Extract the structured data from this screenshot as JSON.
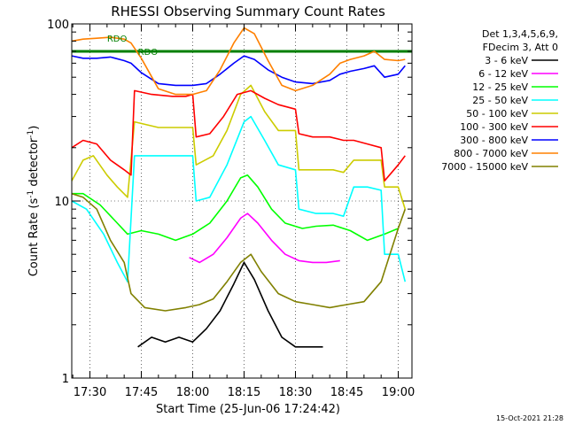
{
  "chart_data": {
    "type": "line",
    "title": "RHESSI Observing Summary Count Rates",
    "xlabel": "Start Time (25-Jun-06 17:24:42)",
    "ylabel": "Count Rate (s⁻¹ detector⁻¹)",
    "ylabel_base": "Count Rate (s",
    "ylabel_sup": "-1",
    "ylabel_rest": " detector",
    "ylabel_sup2": "-1",
    "ylabel_end": ")",
    "y_scale": "log",
    "ylim": [
      1,
      100
    ],
    "xlim": [
      "17:24:42",
      "19:04:00"
    ],
    "x_ticks": [
      "17:30",
      "17:45",
      "18:00",
      "18:15",
      "18:30",
      "18:45",
      "19:00"
    ],
    "y_ticks": [
      "1",
      "10",
      "100"
    ],
    "grid": "dotted",
    "legend_position": "right",
    "legend_header": [
      "Det 1,3,4,5,6,9,",
      "FDecim 3, Att 0"
    ],
    "footer_timestamp": "15-Oct-2021 21:28",
    "annotations": [
      {
        "text": "RDO",
        "at": "17:35",
        "value": 83
      },
      {
        "text": "RDO",
        "at": "17:44",
        "value": 70
      }
    ],
    "attenuator_level": {
      "value": 70,
      "from": "17:24:42",
      "to": "19:04:00",
      "color": "#007f00"
    },
    "series": [
      {
        "name": "3 - 6 keV",
        "color": "#000000",
        "points": [
          [
            "17:44",
            1.5
          ],
          [
            "17:48",
            1.7
          ],
          [
            "17:52",
            1.6
          ],
          [
            "17:56",
            1.7
          ],
          [
            "18:00",
            1.6
          ],
          [
            "18:04",
            1.9
          ],
          [
            "18:08",
            2.4
          ],
          [
            "18:12",
            3.4
          ],
          [
            "18:15",
            4.5
          ],
          [
            "18:18",
            3.6
          ],
          [
            "18:22",
            2.4
          ],
          [
            "18:26",
            1.7
          ],
          [
            "18:30",
            1.5
          ],
          [
            "18:34",
            1.5
          ],
          [
            "18:38",
            1.5
          ]
        ]
      },
      {
        "name": "6 - 12 keV",
        "color": "#ff00ff",
        "points": [
          [
            "17:59",
            4.8
          ],
          [
            "18:02",
            4.5
          ],
          [
            "18:06",
            5.0
          ],
          [
            "18:10",
            6.2
          ],
          [
            "18:14",
            8.0
          ],
          [
            "18:16",
            8.5
          ],
          [
            "18:19",
            7.5
          ],
          [
            "18:23",
            6.0
          ],
          [
            "18:27",
            5.0
          ],
          [
            "18:31",
            4.6
          ],
          [
            "18:35",
            4.5
          ],
          [
            "18:39",
            4.5
          ],
          [
            "18:43",
            4.6
          ]
        ]
      },
      {
        "name": "12 - 25 keV",
        "color": "#00ff00",
        "points": [
          [
            "17:24:42",
            11
          ],
          [
            "17:28",
            11
          ],
          [
            "17:33",
            9.5
          ],
          [
            "17:38",
            7.5
          ],
          [
            "17:41",
            6.5
          ],
          [
            "17:45",
            6.8
          ],
          [
            "17:50",
            6.5
          ],
          [
            "17:55",
            6.0
          ],
          [
            "18:00",
            6.5
          ],
          [
            "18:05",
            7.5
          ],
          [
            "18:10",
            10
          ],
          [
            "18:14",
            13.5
          ],
          [
            "18:16",
            14
          ],
          [
            "18:19",
            12
          ],
          [
            "18:23",
            9
          ],
          [
            "18:27",
            7.5
          ],
          [
            "18:32",
            7.0
          ],
          [
            "18:36",
            7.2
          ],
          [
            "18:41",
            7.3
          ],
          [
            "18:46",
            6.8
          ],
          [
            "18:51",
            6.0
          ],
          [
            "18:56",
            6.5
          ],
          [
            "19:00",
            7.0
          ]
        ]
      },
      {
        "name": "25 - 50 keV",
        "color": "#00ffff",
        "points": [
          [
            "17:24:42",
            10
          ],
          [
            "17:29",
            9
          ],
          [
            "17:34",
            6.5
          ],
          [
            "17:38",
            4.5
          ],
          [
            "17:41",
            3.5
          ],
          [
            "17:43",
            18
          ],
          [
            "17:50",
            18
          ],
          [
            "17:56",
            18
          ],
          [
            "18:00",
            18
          ],
          [
            "18:01",
            10
          ],
          [
            "18:05",
            10.5
          ],
          [
            "18:10",
            16
          ],
          [
            "18:15",
            28
          ],
          [
            "18:17",
            30
          ],
          [
            "18:21",
            22
          ],
          [
            "18:25",
            16
          ],
          [
            "18:30",
            15
          ],
          [
            "18:31",
            9
          ],
          [
            "18:36",
            8.5
          ],
          [
            "18:41",
            8.5
          ],
          [
            "18:44",
            8.2
          ],
          [
            "18:47",
            12
          ],
          [
            "18:51",
            12
          ],
          [
            "18:55",
            11.5
          ],
          [
            "18:56",
            5
          ],
          [
            "19:00",
            5
          ],
          [
            "19:02",
            3.5
          ]
        ]
      },
      {
        "name": "50 - 100 keV",
        "color": "#cccc00",
        "points": [
          [
            "17:24:42",
            13
          ],
          [
            "17:28",
            17
          ],
          [
            "17:31",
            18
          ],
          [
            "17:35",
            14
          ],
          [
            "17:38",
            12
          ],
          [
            "17:41",
            10.5
          ],
          [
            "17:43",
            28
          ],
          [
            "17:50",
            26
          ],
          [
            "17:56",
            26
          ],
          [
            "18:00",
            26
          ],
          [
            "18:01",
            16
          ],
          [
            "18:06",
            18
          ],
          [
            "18:10",
            25
          ],
          [
            "18:14",
            40
          ],
          [
            "18:17",
            45
          ],
          [
            "18:21",
            32
          ],
          [
            "18:25",
            25
          ],
          [
            "18:30",
            25
          ],
          [
            "18:31",
            15
          ],
          [
            "18:36",
            15
          ],
          [
            "18:41",
            15
          ],
          [
            "18:44",
            14.5
          ],
          [
            "18:47",
            17
          ],
          [
            "18:51",
            17
          ],
          [
            "18:55",
            17
          ],
          [
            "18:56",
            12
          ],
          [
            "19:00",
            12
          ],
          [
            "19:02",
            9
          ]
        ]
      },
      {
        "name": "100 - 300 keV",
        "color": "#ff0000",
        "points": [
          [
            "17:24:42",
            20
          ],
          [
            "17:28",
            22
          ],
          [
            "17:32",
            21
          ],
          [
            "17:36",
            17
          ],
          [
            "17:40",
            15
          ],
          [
            "17:42",
            14
          ],
          [
            "17:43",
            42
          ],
          [
            "17:48",
            40
          ],
          [
            "17:54",
            39
          ],
          [
            "17:58",
            39
          ],
          [
            "18:00",
            40
          ],
          [
            "18:01",
            23
          ],
          [
            "18:05",
            24
          ],
          [
            "18:09",
            30
          ],
          [
            "18:13",
            40
          ],
          [
            "18:17",
            42
          ],
          [
            "18:21",
            38
          ],
          [
            "18:25",
            35
          ],
          [
            "18:30",
            33
          ],
          [
            "18:31",
            24
          ],
          [
            "18:35",
            23
          ],
          [
            "18:40",
            23
          ],
          [
            "18:44",
            22
          ],
          [
            "18:47",
            22
          ],
          [
            "18:51",
            21
          ],
          [
            "18:55",
            20
          ],
          [
            "18:56",
            13
          ],
          [
            "19:00",
            16
          ],
          [
            "19:02",
            18
          ]
        ]
      },
      {
        "name": "300 - 800 keV",
        "color": "#0000ff",
        "points": [
          [
            "17:24:42",
            66
          ],
          [
            "17:28",
            64
          ],
          [
            "17:32",
            64
          ],
          [
            "17:36",
            65
          ],
          [
            "17:40",
            62
          ],
          [
            "17:42",
            60
          ],
          [
            "17:45",
            53
          ],
          [
            "17:50",
            46
          ],
          [
            "17:55",
            45
          ],
          [
            "18:00",
            45
          ],
          [
            "18:04",
            46
          ],
          [
            "18:08",
            52
          ],
          [
            "18:12",
            60
          ],
          [
            "18:15",
            66
          ],
          [
            "18:18",
            63
          ],
          [
            "18:22",
            55
          ],
          [
            "18:26",
            50
          ],
          [
            "18:30",
            47
          ],
          [
            "18:35",
            46
          ],
          [
            "18:40",
            48
          ],
          [
            "18:43",
            52
          ],
          [
            "18:46",
            54
          ],
          [
            "18:50",
            56
          ],
          [
            "18:53",
            58
          ],
          [
            "18:56",
            50
          ],
          [
            "19:00",
            52
          ],
          [
            "19:02",
            58
          ]
        ]
      },
      {
        "name": "800 - 7000 keV",
        "color": "#ff8000",
        "points": [
          [
            "17:24:42",
            80
          ],
          [
            "17:28",
            82
          ],
          [
            "17:32",
            83
          ],
          [
            "17:36",
            84
          ],
          [
            "17:40",
            82
          ],
          [
            "17:42",
            78
          ],
          [
            "17:45",
            64
          ],
          [
            "17:50",
            43
          ],
          [
            "17:55",
            40
          ],
          [
            "18:00",
            40
          ],
          [
            "18:04",
            42
          ],
          [
            "18:08",
            55
          ],
          [
            "18:12",
            78
          ],
          [
            "18:15",
            95
          ],
          [
            "18:18",
            88
          ],
          [
            "18:22",
            62
          ],
          [
            "18:26",
            45
          ],
          [
            "18:30",
            42
          ],
          [
            "18:35",
            45
          ],
          [
            "18:40",
            52
          ],
          [
            "18:43",
            60
          ],
          [
            "18:46",
            63
          ],
          [
            "18:50",
            66
          ],
          [
            "18:53",
            70
          ],
          [
            "18:56",
            63
          ],
          [
            "19:00",
            62
          ],
          [
            "19:02",
            63
          ]
        ]
      },
      {
        "name": "7000 - 15000 keV",
        "color": "#808000",
        "points": [
          [
            "17:24:42",
            11
          ],
          [
            "17:28",
            10.5
          ],
          [
            "17:32",
            9
          ],
          [
            "17:36",
            6
          ],
          [
            "17:40",
            4.5
          ],
          [
            "17:42",
            3.0
          ],
          [
            "17:46",
            2.5
          ],
          [
            "17:52",
            2.4
          ],
          [
            "17:58",
            2.5
          ],
          [
            "18:02",
            2.6
          ],
          [
            "18:06",
            2.8
          ],
          [
            "18:10",
            3.5
          ],
          [
            "18:14",
            4.5
          ],
          [
            "18:17",
            5.0
          ],
          [
            "18:20",
            4.0
          ],
          [
            "18:25",
            3.0
          ],
          [
            "18:30",
            2.7
          ],
          [
            "18:35",
            2.6
          ],
          [
            "18:40",
            2.5
          ],
          [
            "18:45",
            2.6
          ],
          [
            "18:50",
            2.7
          ],
          [
            "18:55",
            3.5
          ],
          [
            "19:00",
            7.0
          ],
          [
            "19:02",
            9.0
          ]
        ]
      }
    ]
  }
}
